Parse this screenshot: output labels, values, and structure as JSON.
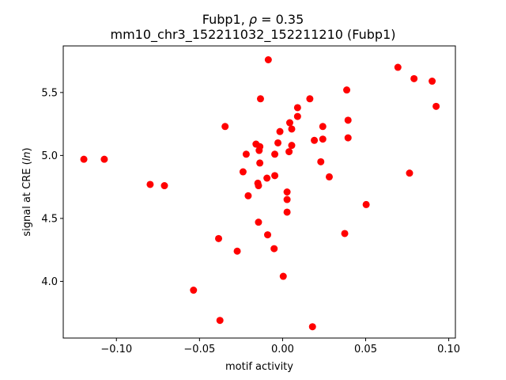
{
  "chart_data": {
    "type": "scatter",
    "title_line1": "Fubp1, ρ = 0.35",
    "title_line2": "mm10_chr3_152211032_152211210 (Fubp1)",
    "xlabel": "motif activity",
    "ylabel": "signal at CRE (ln)",
    "xlim": [
      -0.132,
      0.104
    ],
    "ylim": [
      3.55,
      5.87
    ],
    "xticks": [
      -0.1,
      -0.05,
      0.0,
      0.05,
      0.1
    ],
    "xtick_labels": [
      "−0.10",
      "−0.05",
      "0.00",
      "0.05",
      "0.10"
    ],
    "yticks": [
      4.0,
      4.5,
      5.0,
      5.5
    ],
    "ytick_labels": [
      "4.0",
      "4.5",
      "5.0",
      "5.5"
    ],
    "marker_color": "#ff0000",
    "grid": false,
    "points": [
      {
        "x": -0.1196,
        "y": 4.97
      },
      {
        "x": -0.1073,
        "y": 4.97
      },
      {
        "x": -0.0797,
        "y": 4.77
      },
      {
        "x": -0.0711,
        "y": 4.76
      },
      {
        "x": -0.0536,
        "y": 3.93
      },
      {
        "x": -0.0385,
        "y": 4.34
      },
      {
        "x": -0.0377,
        "y": 3.69
      },
      {
        "x": -0.0346,
        "y": 5.23
      },
      {
        "x": -0.0273,
        "y": 4.24
      },
      {
        "x": -0.0238,
        "y": 4.87
      },
      {
        "x": -0.0219,
        "y": 5.01
      },
      {
        "x": -0.0207,
        "y": 4.68
      },
      {
        "x": -0.016,
        "y": 5.09
      },
      {
        "x": -0.0149,
        "y": 4.78
      },
      {
        "x": -0.0145,
        "y": 4.76
      },
      {
        "x": -0.0145,
        "y": 4.47
      },
      {
        "x": -0.0141,
        "y": 5.04
      },
      {
        "x": -0.0137,
        "y": 5.07
      },
      {
        "x": -0.0137,
        "y": 4.94
      },
      {
        "x": -0.0133,
        "y": 5.45
      },
      {
        "x": -0.0094,
        "y": 4.82
      },
      {
        "x": -0.009,
        "y": 4.37
      },
      {
        "x": -0.0086,
        "y": 5.76
      },
      {
        "x": -0.0051,
        "y": 4.26
      },
      {
        "x": -0.0047,
        "y": 5.01
      },
      {
        "x": -0.0047,
        "y": 4.84
      },
      {
        "x": -0.0028,
        "y": 5.1
      },
      {
        "x": -0.0016,
        "y": 5.19
      },
      {
        "x": 0.0004,
        "y": 4.04
      },
      {
        "x": 0.0027,
        "y": 4.71
      },
      {
        "x": 0.0027,
        "y": 4.65
      },
      {
        "x": 0.0027,
        "y": 4.55
      },
      {
        "x": 0.0039,
        "y": 5.03
      },
      {
        "x": 0.0043,
        "y": 5.26
      },
      {
        "x": 0.0055,
        "y": 5.21
      },
      {
        "x": 0.0055,
        "y": 5.08
      },
      {
        "x": 0.009,
        "y": 5.38
      },
      {
        "x": 0.009,
        "y": 5.31
      },
      {
        "x": 0.0164,
        "y": 5.45
      },
      {
        "x": 0.018,
        "y": 3.64
      },
      {
        "x": 0.0191,
        "y": 5.12
      },
      {
        "x": 0.023,
        "y": 4.95
      },
      {
        "x": 0.0242,
        "y": 5.23
      },
      {
        "x": 0.0242,
        "y": 5.13
      },
      {
        "x": 0.0281,
        "y": 4.83
      },
      {
        "x": 0.0374,
        "y": 4.38
      },
      {
        "x": 0.0386,
        "y": 5.52
      },
      {
        "x": 0.0394,
        "y": 5.28
      },
      {
        "x": 0.0394,
        "y": 5.14
      },
      {
        "x": 0.0503,
        "y": 4.61
      },
      {
        "x": 0.0694,
        "y": 5.7
      },
      {
        "x": 0.0764,
        "y": 4.86
      },
      {
        "x": 0.0791,
        "y": 5.61
      },
      {
        "x": 0.09,
        "y": 5.59
      },
      {
        "x": 0.0924,
        "y": 5.39
      }
    ]
  }
}
